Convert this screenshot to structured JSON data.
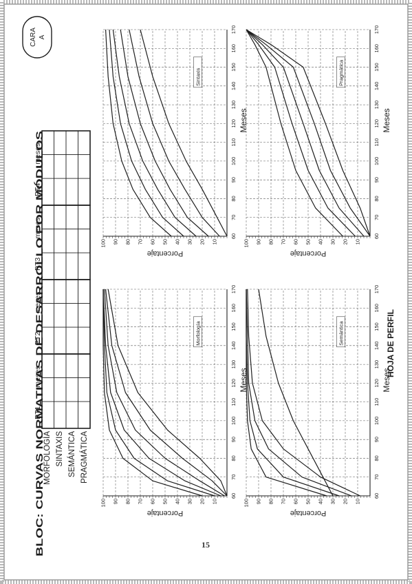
{
  "header": {
    "title": "BLOC: CURVAS NORMATIVAS DE DESARROLLO POR MÓDULOS",
    "side_label_line1": "CARA",
    "side_label_line2": "A",
    "footer_title": "HOJA DE PERFIL",
    "page_number": "15"
  },
  "score_table": {
    "row_labels": [
      "MORFOLOGÍA",
      "SINTAXIS",
      "SEMÁNTICA",
      "PRAGMÁTICA"
    ],
    "column_groups": [
      {
        "label": "PT1",
        "unit": "meses"
      },
      {
        "label": "PT2",
        "unit": "meses"
      },
      {
        "label": "PT3",
        "unit": "meses"
      },
      {
        "label": "PT4",
        "unit": "meses"
      }
    ]
  },
  "colors": {
    "ink": "#1e1e1e",
    "grid": "#5a5a5a",
    "border_texture": "#b8b8b8",
    "paper": "#ffffff"
  },
  "chart_data": [
    {
      "type": "line",
      "title": "Morfología",
      "xlabel": "Meses",
      "ylabel": "Porcentaje",
      "xlim": [
        60,
        170
      ],
      "ylim": [
        0,
        100
      ],
      "xticks": [
        60,
        70,
        80,
        90,
        100,
        110,
        120,
        130,
        140,
        150,
        160,
        170
      ],
      "yticks": [
        10,
        20,
        30,
        40,
        50,
        60,
        70,
        80,
        90,
        100
      ],
      "grid": true,
      "series": [
        {
          "x": [
            60,
            68,
            80,
            95,
            115,
            140,
            170
          ],
          "y": [
            20,
            60,
            84,
            95,
            99,
            100,
            100
          ]
        },
        {
          "x": [
            60,
            68,
            80,
            95,
            115,
            140,
            170
          ],
          "y": [
            10,
            48,
            75,
            90,
            97,
            99,
            100
          ]
        },
        {
          "x": [
            60,
            68,
            80,
            95,
            115,
            140,
            170
          ],
          "y": [
            5,
            34,
            63,
            83,
            94,
            98,
            100
          ]
        },
        {
          "x": [
            60,
            68,
            80,
            95,
            115,
            140,
            170
          ],
          "y": [
            2,
            22,
            50,
            74,
            89,
            96,
            99
          ]
        },
        {
          "x": [
            60,
            68,
            80,
            95,
            115,
            140,
            170
          ],
          "y": [
            0,
            12,
            36,
            62,
            82,
            93,
            98
          ]
        },
        {
          "x": [
            60,
            68,
            80,
            95,
            115,
            140,
            170
          ],
          "y": [
            0,
            5,
            22,
            48,
            72,
            88,
            96
          ]
        }
      ]
    },
    {
      "type": "line",
      "title": "Sintaxis",
      "xlabel": "Meses",
      "ylabel": "Porcentaje",
      "xlim": [
        60,
        170
      ],
      "ylim": [
        0,
        100
      ],
      "xticks": [
        60,
        70,
        80,
        90,
        100,
        110,
        120,
        130,
        140,
        150,
        160,
        170
      ],
      "yticks": [
        10,
        20,
        30,
        40,
        50,
        60,
        70,
        80,
        90,
        100
      ],
      "grid": true,
      "series": [
        {
          "x": [
            60,
            70,
            85,
            100,
            120,
            145,
            170
          ],
          "y": [
            45,
            62,
            76,
            85,
            92,
            96,
            98
          ]
        },
        {
          "x": [
            60,
            70,
            85,
            100,
            120,
            145,
            170
          ],
          "y": [
            35,
            52,
            66,
            77,
            86,
            92,
            95
          ]
        },
        {
          "x": [
            60,
            70,
            85,
            100,
            120,
            145,
            170
          ],
          "y": [
            25,
            42,
            56,
            68,
            79,
            87,
            92
          ]
        },
        {
          "x": [
            60,
            70,
            85,
            100,
            120,
            145,
            170
          ],
          "y": [
            15,
            32,
            46,
            58,
            70,
            80,
            86
          ]
        },
        {
          "x": [
            60,
            70,
            85,
            100,
            120,
            145,
            170
          ],
          "y": [
            6,
            20,
            34,
            47,
            60,
            71,
            79
          ]
        },
        {
          "x": [
            60,
            70,
            85,
            100,
            120,
            145,
            170
          ],
          "y": [
            0,
            8,
            20,
            33,
            47,
            60,
            70
          ]
        }
      ]
    },
    {
      "type": "line",
      "title": "Semántica",
      "xlabel": "Meses",
      "ylabel": "Porcentaje",
      "xlim": [
        60,
        170
      ],
      "ylim": [
        0,
        100
      ],
      "xticks": [
        60,
        70,
        80,
        90,
        100,
        110,
        120,
        130,
        140,
        150,
        160,
        170
      ],
      "yticks": [
        10,
        20,
        30,
        40,
        50,
        60,
        70,
        80,
        90,
        100
      ],
      "grid": true,
      "series": [
        {
          "x": [
            60,
            70,
            85,
            100,
            120,
            145,
            170
          ],
          "y": [
            35,
            84,
            96,
            99,
            100,
            100,
            100
          ]
        },
        {
          "x": [
            60,
            70,
            85,
            100,
            120,
            145,
            170
          ],
          "y": [
            25,
            70,
            91,
            97,
            99,
            100,
            100
          ]
        },
        {
          "x": [
            60,
            70,
            85,
            100,
            120,
            145,
            170
          ],
          "y": [
            15,
            55,
            82,
            93,
            98,
            99,
            100
          ]
        },
        {
          "x": [
            60,
            70,
            85,
            100,
            120,
            145,
            170
          ],
          "y": [
            8,
            40,
            70,
            87,
            95,
            98,
            99
          ]
        },
        {
          "x": [
            60,
            70,
            85,
            100,
            120,
            145,
            170
          ],
          "y": [
            30,
            38,
            50,
            62,
            74,
            84,
            90
          ]
        }
      ]
    },
    {
      "type": "line",
      "title": "Pragmática",
      "xlabel": "Meses",
      "ylabel": "Porcentaje",
      "xlim": [
        60,
        170
      ],
      "ylim": [
        0,
        100
      ],
      "xticks": [
        60,
        70,
        80,
        90,
        100,
        110,
        120,
        130,
        140,
        150,
        160,
        170
      ],
      "yticks": [
        10,
        20,
        30,
        40,
        50,
        60,
        70,
        80,
        90,
        100
      ],
      "grid": true,
      "series": [
        {
          "x": [
            60,
            75,
            95,
            120,
            150,
            162,
            170
          ],
          "y": [
            22,
            44,
            60,
            72,
            84,
            93,
            100
          ]
        },
        {
          "x": [
            60,
            75,
            95,
            120,
            150,
            162,
            170
          ],
          "y": [
            12,
            34,
            50,
            63,
            77,
            90,
            100
          ]
        },
        {
          "x": [
            60,
            75,
            95,
            120,
            150,
            162,
            170
          ],
          "y": [
            5,
            25,
            41,
            54,
            70,
            87,
            100
          ]
        },
        {
          "x": [
            60,
            75,
            95,
            120,
            150,
            162,
            170
          ],
          "y": [
            0,
            16,
            32,
            45,
            62,
            84,
            100
          ]
        },
        {
          "x": [
            60,
            75,
            95,
            120,
            150,
            162,
            170
          ],
          "y": [
            0,
            8,
            22,
            36,
            54,
            80,
            100
          ]
        }
      ]
    }
  ]
}
